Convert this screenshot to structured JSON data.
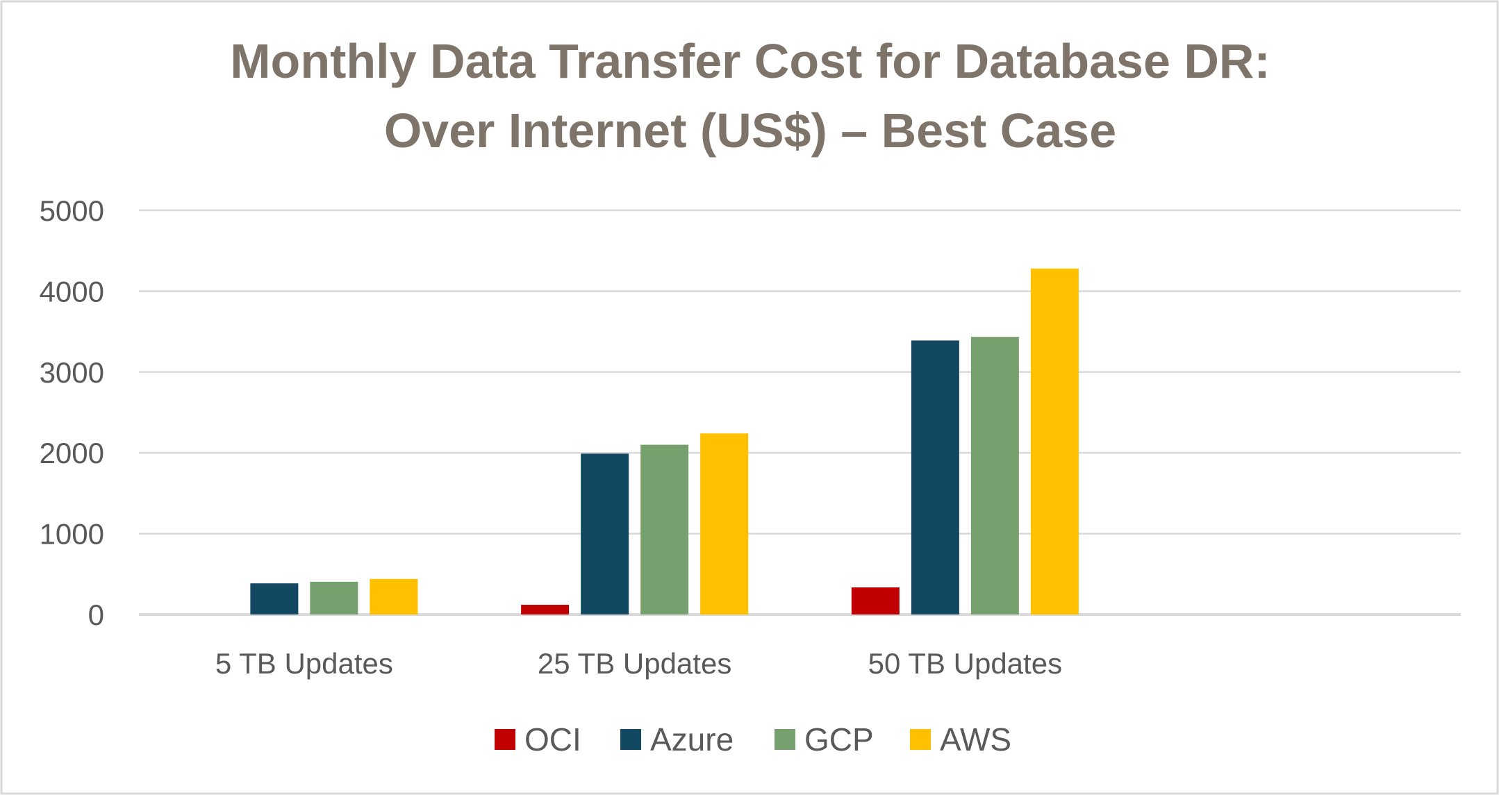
{
  "chart_data": {
    "type": "bar",
    "title": "Monthly Data Transfer Cost for Database DR:",
    "title_line2": "Over Internet (US$) – Best Case",
    "xlabel": "",
    "ylabel": "",
    "categories": [
      "5 TB Updates",
      "25 TB Updates",
      "50 TB Updates"
    ],
    "series": [
      {
        "name": "OCI",
        "color": "#c00000",
        "values": [
          0,
          120,
          335
        ]
      },
      {
        "name": "Azure",
        "color": "#124862",
        "values": [
          385,
          1990,
          3390
        ]
      },
      {
        "name": "GCP",
        "color": "#77a06f",
        "values": [
          405,
          2100,
          3435
        ]
      },
      {
        "name": "AWS",
        "color": "#ffc000",
        "values": [
          440,
          2240,
          4280
        ]
      }
    ],
    "ylim": [
      0,
      5000
    ],
    "yticks": [
      0,
      1000,
      2000,
      3000,
      4000,
      5000
    ],
    "grid": true,
    "legend_position": "bottom"
  }
}
